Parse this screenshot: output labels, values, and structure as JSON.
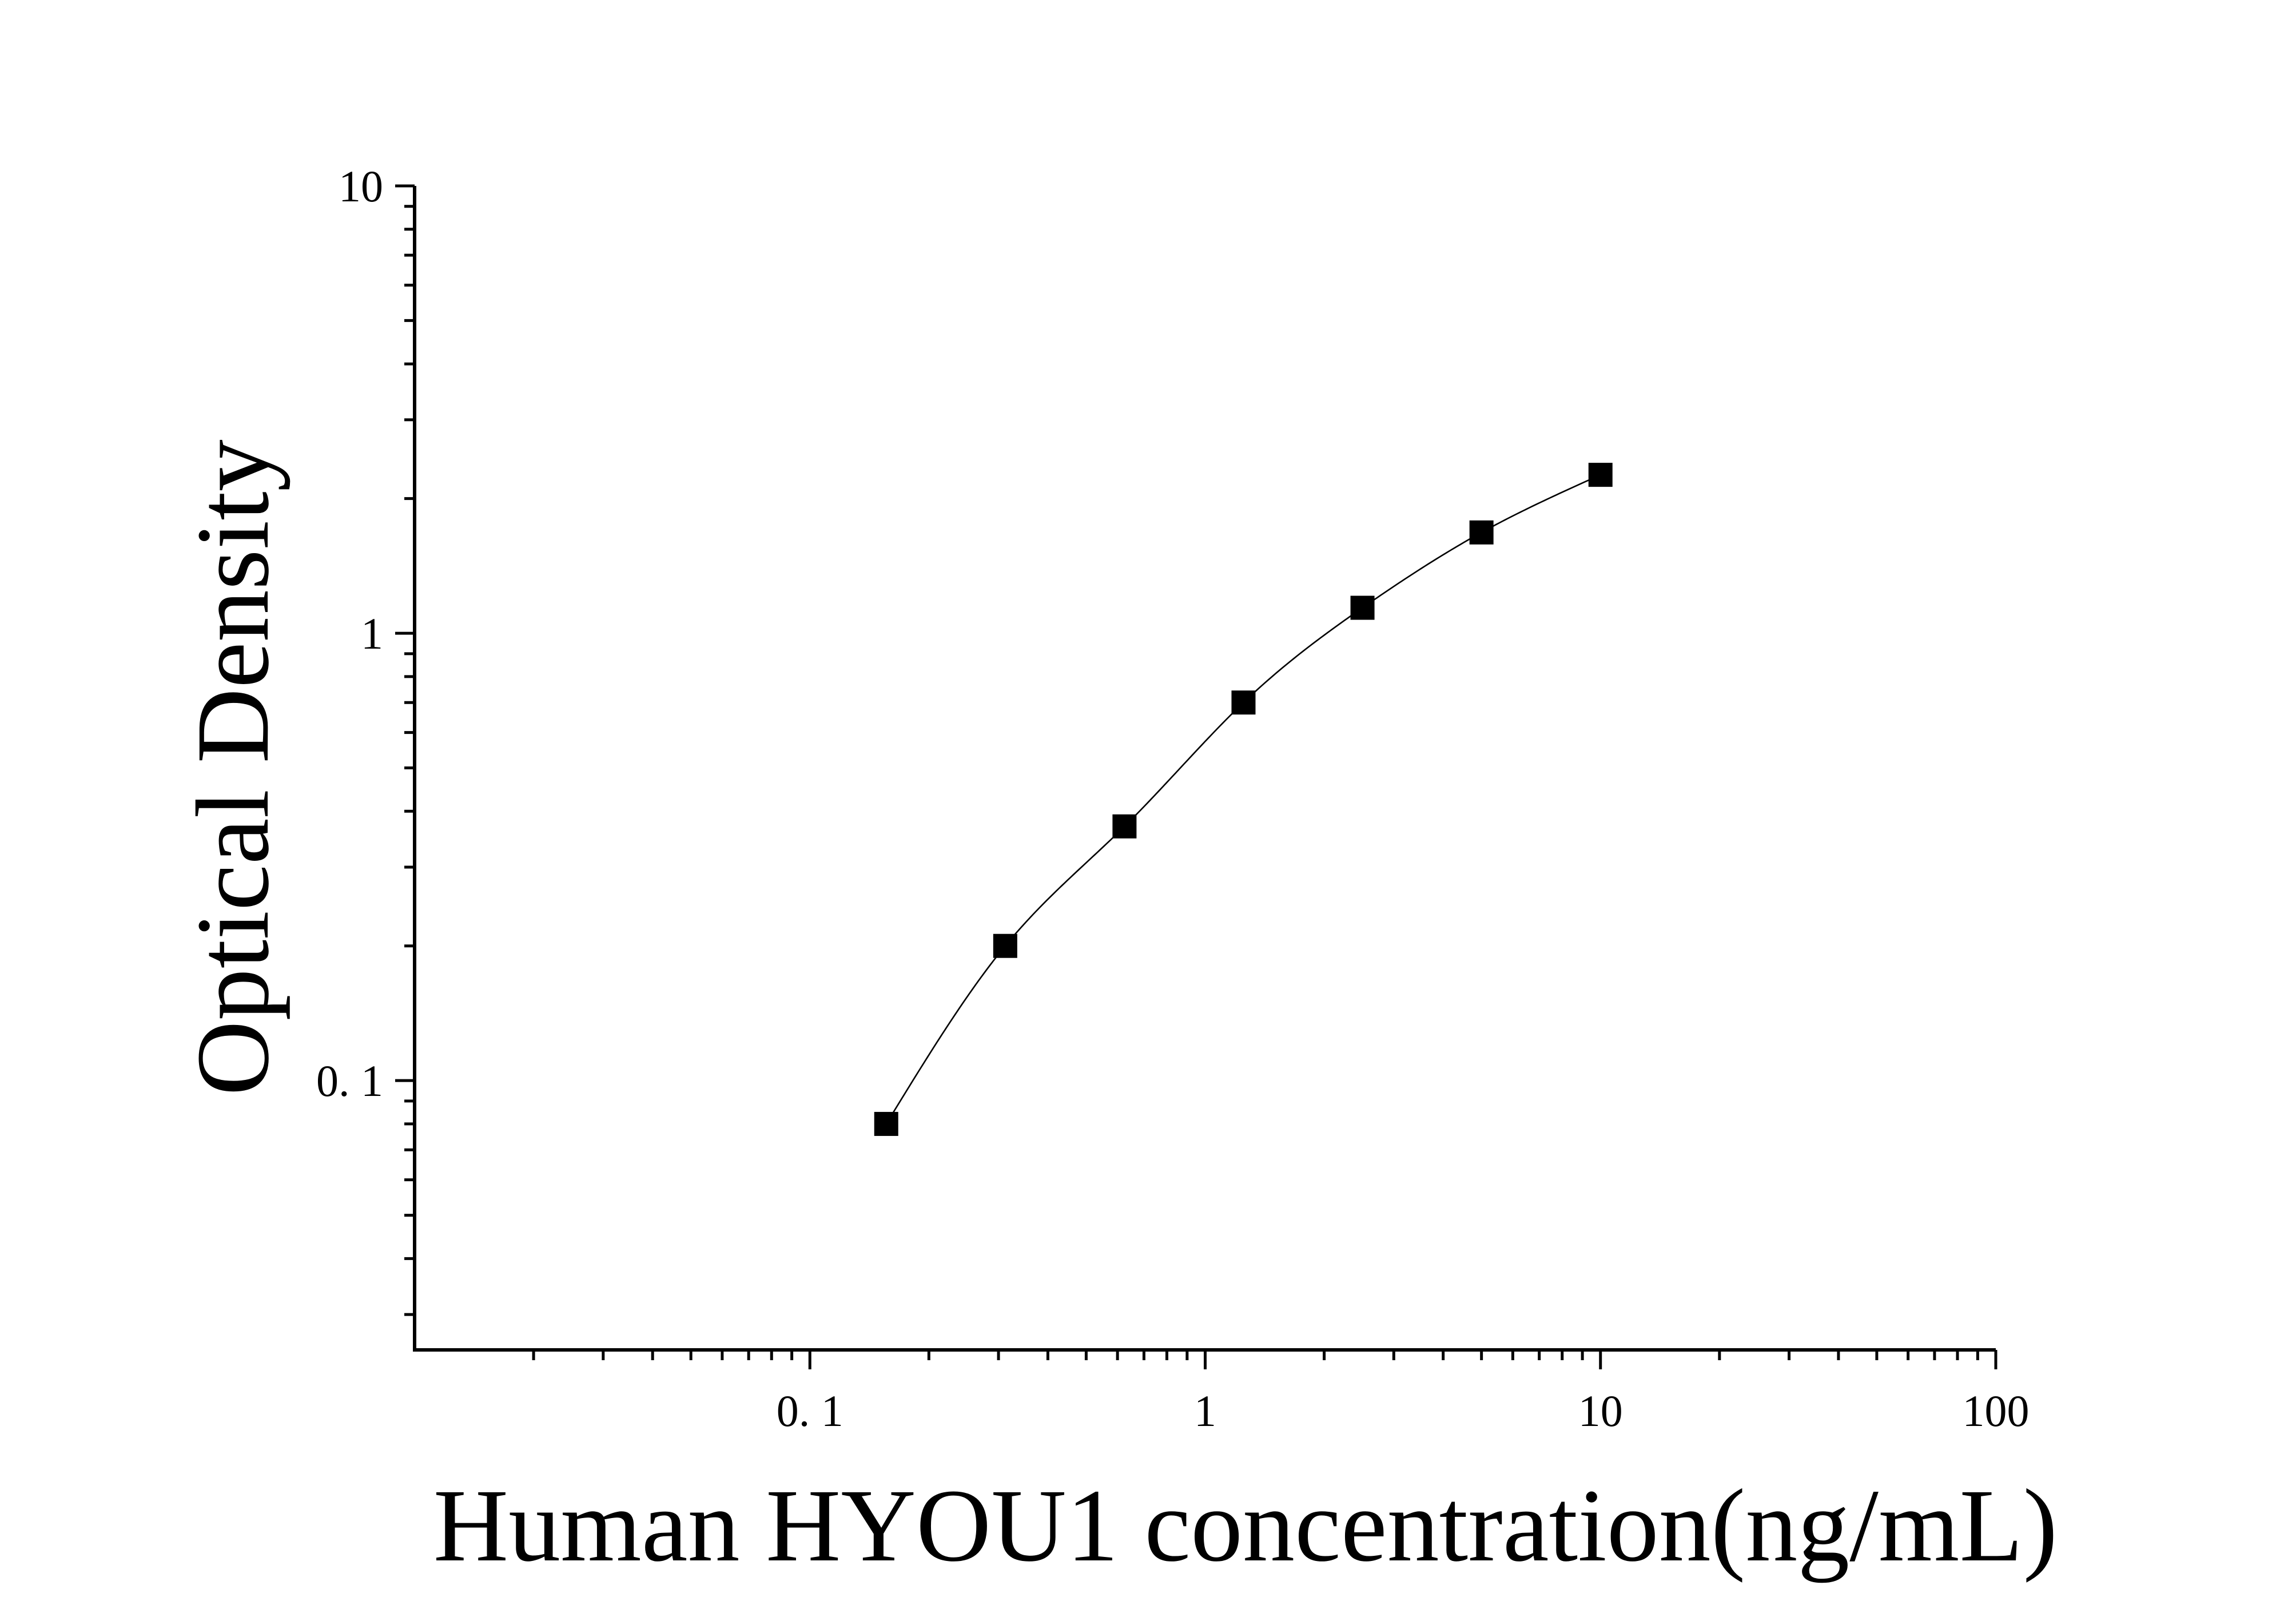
{
  "chart_data": {
    "type": "scatter",
    "xlabel": "Human HYOU1 concentration(ng/mL)",
    "ylabel": "Optical Density",
    "xscale": "log",
    "yscale": "log",
    "xlim": [
      0.01,
      100
    ],
    "ylim": [
      0.025,
      10
    ],
    "x_tick_labels": [
      "0. 1",
      "1",
      "10",
      "100"
    ],
    "y_tick_labels": [
      "0. 1",
      "1",
      "10"
    ],
    "grid": false,
    "legend": "none",
    "marker": "square",
    "color": "#000000",
    "fit_curve": true,
    "series": [
      {
        "x": [
          0.156,
          0.312,
          0.625,
          1.25,
          2.5,
          5,
          10
        ],
        "y": [
          0.08,
          0.2,
          0.37,
          0.7,
          1.14,
          1.68,
          2.26
        ]
      }
    ]
  }
}
